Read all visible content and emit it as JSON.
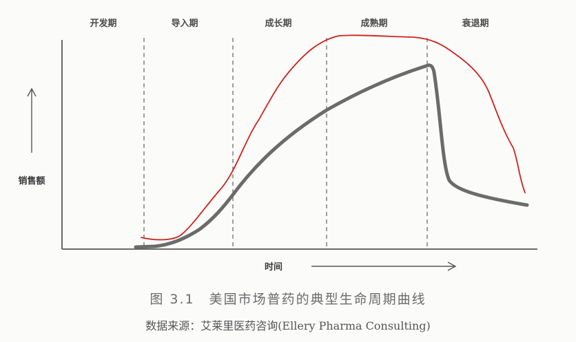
{
  "phases": [
    "开发期",
    "导入期",
    "成长期",
    "成熟期",
    "衰退期"
  ],
  "axes": {
    "y_label": "销售额",
    "x_label": "时间"
  },
  "caption": {
    "title": "图 3.1　美国市场普药的典型生命周期曲线",
    "source": "数据来源：艾莱里医药咨询(Ellery Pharma Consulting)"
  },
  "colors": {
    "gray_curve": "#6b6b6b",
    "red_curve": "#d0201a",
    "axis": "#555555",
    "divider": "#777777"
  }
}
